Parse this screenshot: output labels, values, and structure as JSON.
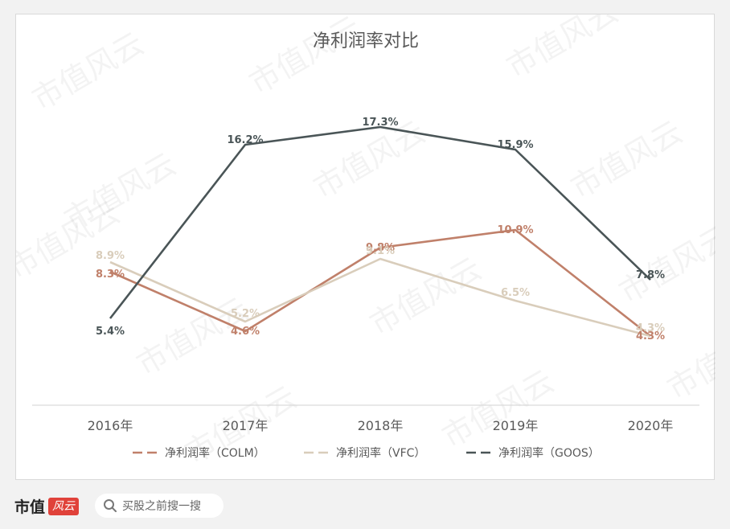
{
  "chart_data": {
    "type": "line",
    "title": "净利润率对比",
    "categories": [
      "2016年",
      "2017年",
      "2018年",
      "2019年",
      "2020年"
    ],
    "ylim": [
      0,
      20
    ],
    "grid": false,
    "legend_position": "bottom",
    "series": [
      {
        "name": "净利润率（COLM）",
        "values": [
          8.3,
          4.6,
          9.8,
          10.9,
          4.3
        ],
        "labels": [
          "8.3%",
          "4.6%",
          "9.8%",
          "10.9%",
          "4.3%"
        ],
        "color": "#c0806a"
      },
      {
        "name": "净利润率（VFC）",
        "values": [
          8.9,
          5.2,
          9.1,
          6.5,
          4.3
        ],
        "labels": [
          "8.9%",
          "5.2%",
          "9.1%",
          "6.5%",
          "4.3%"
        ],
        "color": "#d9cdbb"
      },
      {
        "name": "净利润率（GOOS）",
        "values": [
          5.4,
          16.2,
          17.3,
          15.9,
          7.8
        ],
        "labels": [
          "5.4%",
          "16.2%",
          "17.3%",
          "15.9%",
          "7.8%"
        ],
        "color": "#4a5557"
      }
    ]
  },
  "watermark": "市值风云",
  "footer": {
    "brand": "市值",
    "brand_badge": "风云",
    "search_text": "买股之前搜一搜"
  }
}
